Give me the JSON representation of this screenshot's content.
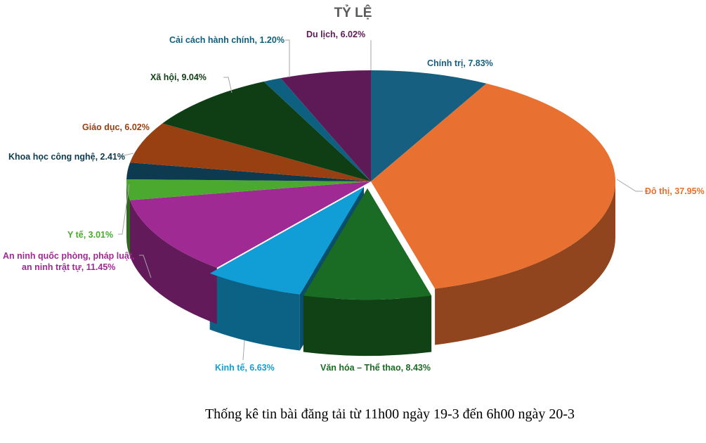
{
  "chart_data": {
    "type": "pie",
    "title": "TỶ LỆ",
    "three_d": true,
    "slices": [
      {
        "label": "Chính trị",
        "value": 7.83,
        "display": "Chính trị, 7.83%",
        "color": "#165f80"
      },
      {
        "label": "Đô thị",
        "value": 37.95,
        "display": "Đô thị, 37.95%",
        "color": "#e87030"
      },
      {
        "label": "Văn hóa – Thể thao",
        "value": 8.43,
        "display": "Văn hóa – Thể thao, 8.43%",
        "color": "#1a6b23"
      },
      {
        "label": "Kinh tế",
        "value": 6.63,
        "display": "Kinh tế, 6.63%",
        "color": "#119ed6"
      },
      {
        "label": "An ninh quốc phòng, pháp luật, an ninh trật tự",
        "value": 11.45,
        "display": "An ninh quốc phòng, pháp luật,\nan ninh trật tự, 11.45%",
        "color": "#a02a93"
      },
      {
        "label": "Y tế",
        "value": 3.01,
        "display": "Y tế, 3.01%",
        "color": "#4ca930"
      },
      {
        "label": "Khoa học công nghệ",
        "value": 2.41,
        "display": "Khoa học công nghệ, 2.41%",
        "color": "#0d3a4e"
      },
      {
        "label": "Giáo dục",
        "value": 6.02,
        "display": "Giáo dục, 6.02%",
        "color": "#984011"
      },
      {
        "label": "Xã hội",
        "value": 9.04,
        "display": "Xã hội, 9.04%",
        "color": "#0f3e15"
      },
      {
        "label": "Cải cách hành chính",
        "value": 1.2,
        "display": "Cải cách hành chính, 1.20%",
        "color": "#0e6080"
      },
      {
        "label": "Du lịch",
        "value": 6.02,
        "display": "Du lịch, 6.02%",
        "color": "#5e1a57"
      }
    ]
  },
  "caption": "Thống kê tin bài đăng tải từ 11h00 ngày 19-3 đến 6h00 ngày 20-3"
}
